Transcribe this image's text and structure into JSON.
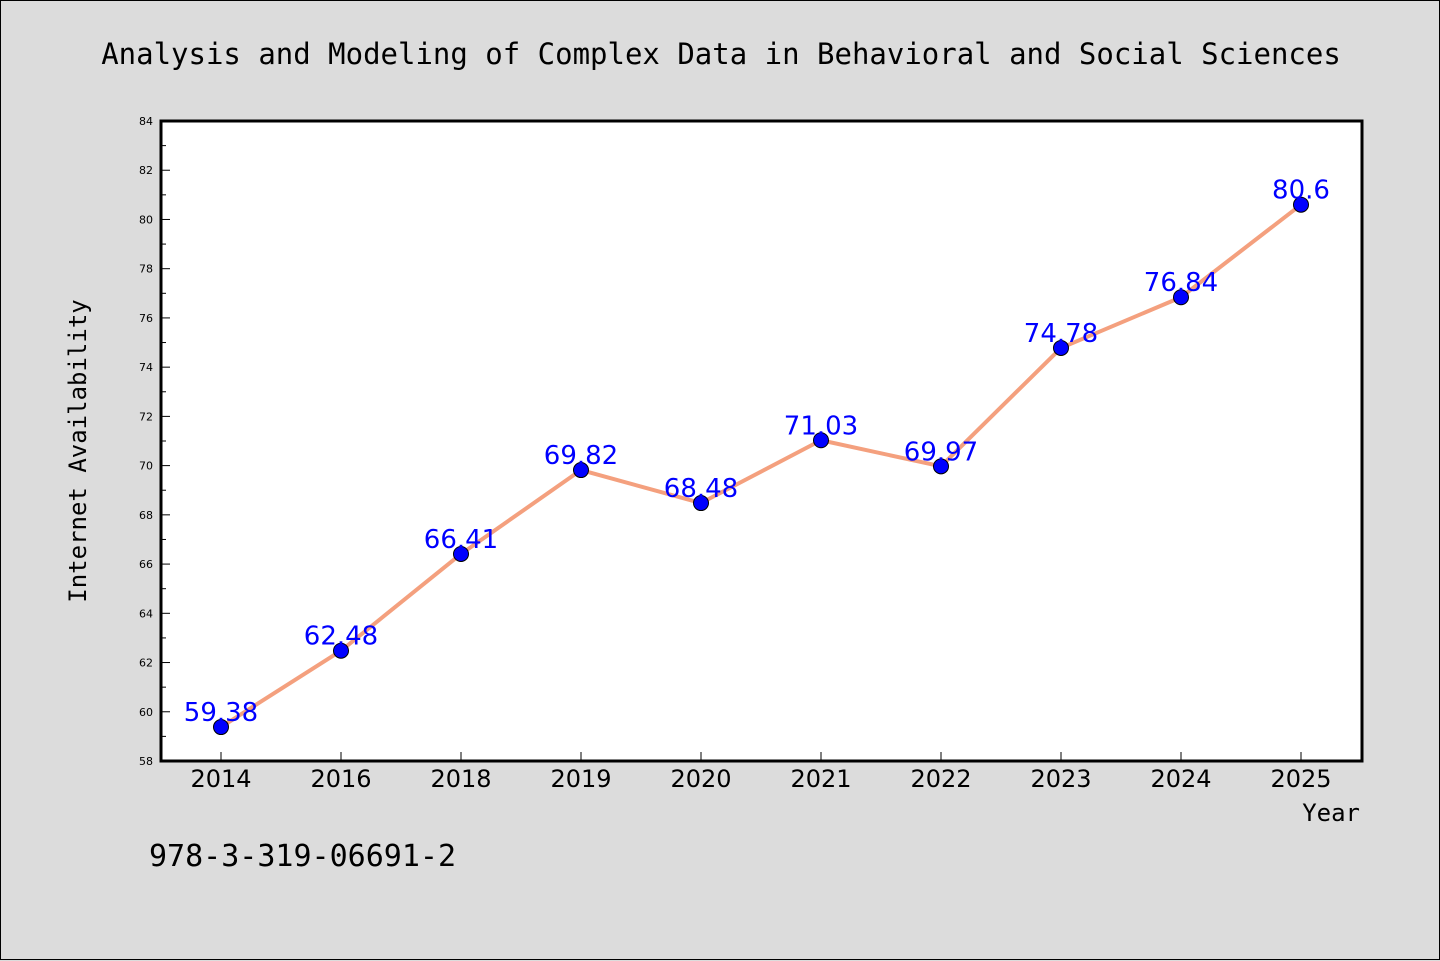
{
  "chart_data": {
    "type": "line",
    "title": "Analysis and Modeling of Complex Data in Behavioral and Social Sciences",
    "xlabel": "Year",
    "ylabel": "Internet Availability",
    "categories": [
      "2014",
      "2016",
      "2018",
      "2019",
      "2020",
      "2021",
      "2022",
      "2023",
      "2024",
      "2025"
    ],
    "series": [
      {
        "values": [
          59.38,
          62.48,
          66.41,
          69.82,
          68.48,
          71.03,
          69.97,
          74.78,
          76.84,
          80.6
        ],
        "data_labels": [
          "59.38",
          "62.48",
          "66.41",
          "69.82",
          "68.48",
          "71.03",
          "69.97",
          "74.78",
          "76.84",
          "80.6"
        ]
      }
    ],
    "ylim": [
      58,
      84
    ],
    "yticks": [
      58,
      60,
      62,
      64,
      66,
      68,
      70,
      72,
      74,
      76,
      78,
      80,
      82,
      84
    ],
    "grid": false,
    "legend": "none",
    "colors": {
      "line": "#f4a07e",
      "marker": "#0000ff",
      "data_label": "#0000ff",
      "background": "#dcdcdc",
      "plot_area": "#ffffff"
    }
  },
  "footer_text": "978-3-319-06691-2"
}
